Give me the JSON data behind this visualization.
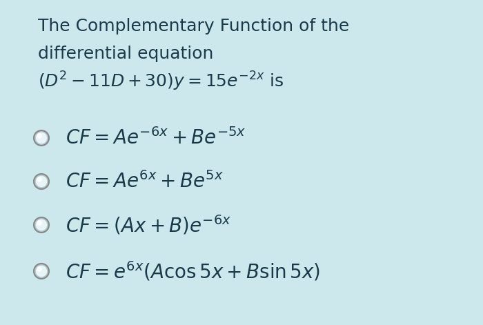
{
  "background_color": "#cce8ed",
  "title_line1": "The Complementary Function of the",
  "title_line2": "differential equation",
  "title_line3": "$(D^2 - 11D + 30)y = 15e^{-2x}$ is",
  "options": [
    "$CF = Ae^{-6x} + Be^{-5x}$",
    "$CF = Ae^{6x} + Be^{5x}$",
    "$CF = (Ax + B)e^{-6x}$",
    "$CF = e^{6x}(A\\cos 5x + B\\sin 5x)$"
  ],
  "title_fontsize": 18,
  "option_fontsize": 20,
  "text_color": "#1a3a4a",
  "circle_color": "#555555",
  "figsize": [
    7.0,
    4.71
  ],
  "dpi": 100
}
